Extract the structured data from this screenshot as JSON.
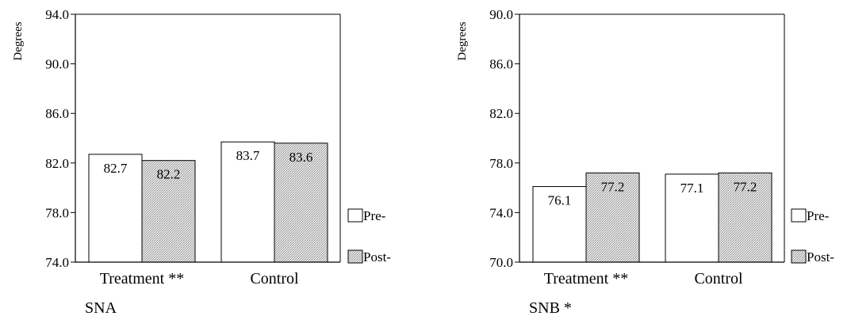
{
  "chart_data": [
    {
      "type": "bar",
      "title": "SNA",
      "ylabel": "Degrees",
      "ylim": [
        74.0,
        94.0
      ],
      "yticks": [
        "74.0",
        "78.0",
        "82.0",
        "86.0",
        "90.0",
        "94.0"
      ],
      "categories": [
        "Treatment **",
        "Control"
      ],
      "series": [
        {
          "name": "Pre-",
          "values": [
            82.7,
            83.7
          ],
          "labels": [
            "82.7",
            "83.7"
          ]
        },
        {
          "name": "Post-",
          "values": [
            82.2,
            83.6
          ],
          "labels": [
            "82.2",
            "83.6"
          ]
        }
      ],
      "legend": "right",
      "grid": false
    },
    {
      "type": "bar",
      "title": "SNB *",
      "ylabel": "Degrees",
      "ylim": [
        70.0,
        90.0
      ],
      "yticks": [
        "70.0",
        "74.0",
        "78.0",
        "82.0",
        "86.0",
        "90.0"
      ],
      "categories": [
        "Treatment **",
        "Control"
      ],
      "series": [
        {
          "name": "Pre-",
          "values": [
            76.1,
            77.1
          ],
          "labels": [
            "76.1",
            "77.1"
          ]
        },
        {
          "name": "Post-",
          "values": [
            77.2,
            77.2
          ],
          "labels": [
            "77.2",
            "77.2"
          ]
        }
      ],
      "legend": "right",
      "grid": false
    }
  ]
}
